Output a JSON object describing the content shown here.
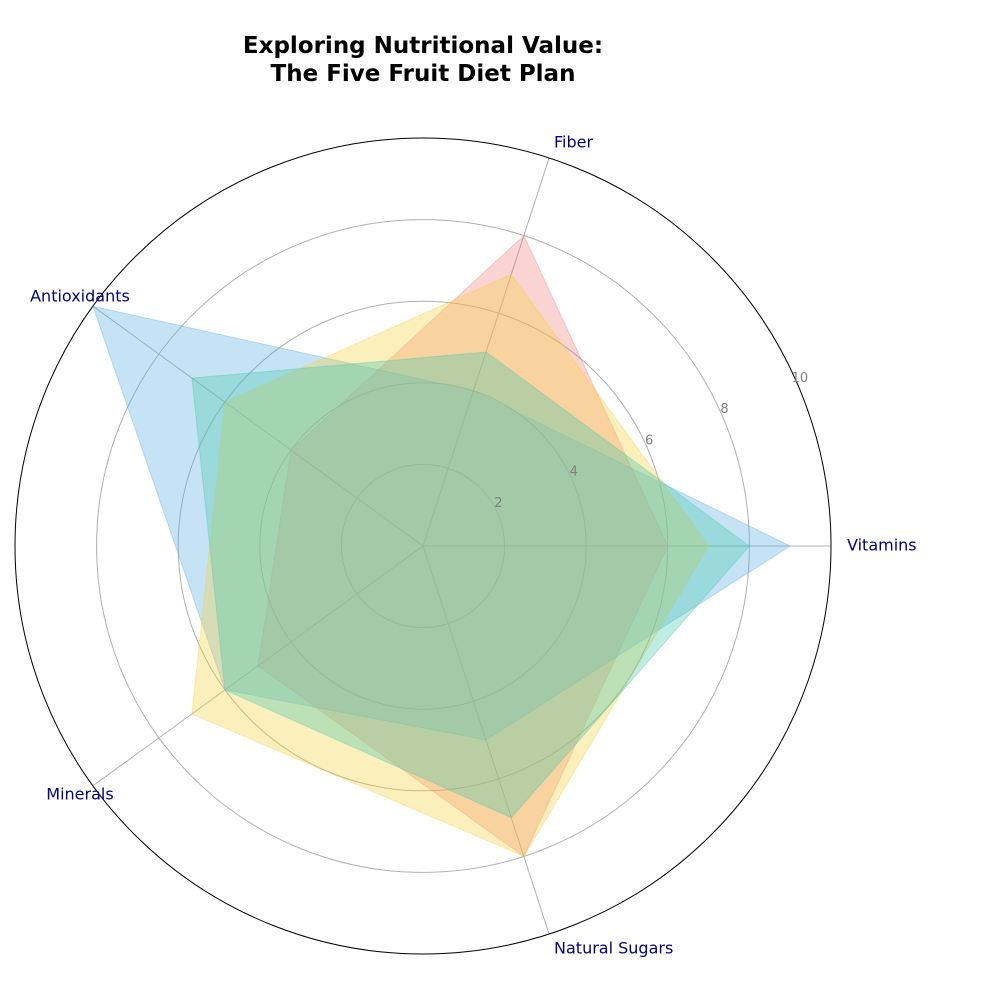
{
  "chart_data": {
    "type": "radar",
    "title": "Exploring Nutritional Value:\nThe Five Fruit Diet Plan",
    "categories": [
      "Vitamins",
      "Fiber",
      "Antioxidants",
      "Minerals",
      "Natural Sugars"
    ],
    "rlim": [
      0,
      10
    ],
    "rticks": [
      "2",
      "4",
      "6",
      "8",
      "10"
    ],
    "grid": true,
    "series": [
      {
        "values": [
          6,
          8,
          4,
          5,
          8
        ],
        "color": "#f08080"
      },
      {
        "values": [
          9,
          4,
          10,
          6,
          5
        ],
        "color": "#5dade2"
      },
      {
        "values": [
          7,
          7,
          6,
          7,
          8
        ],
        "color": "#f4d03f"
      },
      {
        "values": [
          8,
          5,
          7,
          6,
          7
        ],
        "color": "#48c9b0"
      }
    ]
  }
}
